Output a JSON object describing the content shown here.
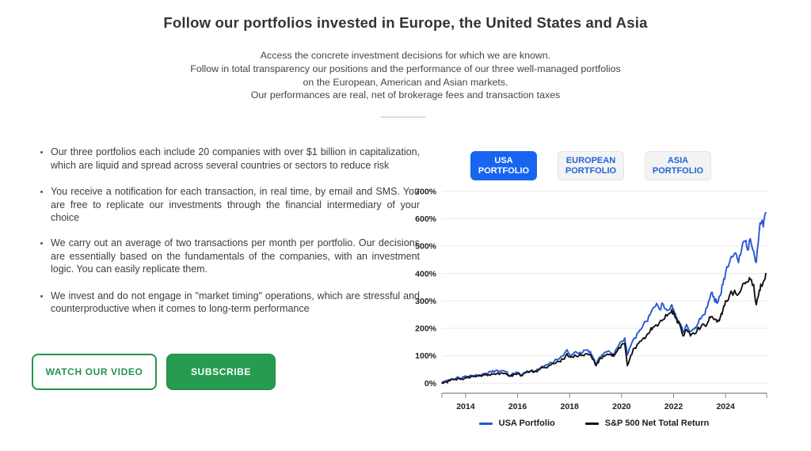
{
  "page": {
    "title": "Follow our portfolios invested in Europe, the United States and Asia",
    "subtitle_lines": [
      "Access the concrete investment decisions for which we are known.",
      "Follow in total transparency our positions and the performance of our three well-managed portfolios",
      "on the European, American and Asian markets.",
      "Our performances are real, net of brokerage fees and transaction taxes"
    ]
  },
  "bullets": [
    "Our three portfolios each include 20 companies with over $1 billion in capitalization, which are liquid and spread across several countries or sectors to reduce risk",
    "You receive a notification for each transaction, in real time, by email and SMS. You are free to replicate our investments through the financial intermediary of your choice",
    "We carry out an average of two transactions per month per portfolio. Our decisions are essentially based on the fundamentals of the companies, with an investment logic. You can easily replicate them.",
    "We invest and do not engage in \"market timing\" operations, which are stressful and counterproductive when it comes to long-term performance"
  ],
  "actions": {
    "watch_video": "WATCH OUR VIDEO",
    "subscribe": "SUBSCRIBE"
  },
  "tabs": [
    {
      "label": "USA\nPORTFOLIO",
      "active": true
    },
    {
      "label": "EUROPEAN\nPORTFOLIO",
      "active": false
    },
    {
      "label": "ASIA\nPORTFOLIO",
      "active": false
    }
  ],
  "colors": {
    "tab_active_bg": "#1765f0",
    "tab_inactive_text": "#2265cf",
    "button_green": "#279b50",
    "usa_line": "#2b57d0",
    "sp500_line": "#141414",
    "gridline": "#eaeaea",
    "axis": "#666666"
  },
  "chart_data": {
    "type": "line",
    "title": "",
    "xlabel": "",
    "ylabel": "",
    "grid": true,
    "legend_position": "bottom",
    "xlim": [
      2013.09,
      2025.58
    ],
    "ylim": [
      0,
      700
    ],
    "x_ticks": [
      2014,
      2016,
      2018,
      2020,
      2022,
      2024
    ],
    "y_ticks": [
      "0%",
      "100%",
      "200%",
      "300%",
      "400%",
      "500%",
      "600%",
      "700%"
    ],
    "series": [
      {
        "name": "USA Portfolio",
        "color": "#2b57d0",
        "points": [
          [
            2013.1,
            2
          ],
          [
            2013.2,
            7
          ],
          [
            2013.35,
            12
          ],
          [
            2013.5,
            15
          ],
          [
            2013.65,
            20
          ],
          [
            2013.8,
            18
          ],
          [
            2013.95,
            24
          ],
          [
            2014.1,
            22
          ],
          [
            2014.25,
            28
          ],
          [
            2014.4,
            31
          ],
          [
            2014.55,
            27
          ],
          [
            2014.7,
            33
          ],
          [
            2014.85,
            36
          ],
          [
            2015.0,
            40
          ],
          [
            2015.15,
            45
          ],
          [
            2015.3,
            42
          ],
          [
            2015.45,
            46
          ],
          [
            2015.6,
            40
          ],
          [
            2015.72,
            27
          ],
          [
            2015.85,
            36
          ],
          [
            2016.0,
            38
          ],
          [
            2016.12,
            26
          ],
          [
            2016.3,
            38
          ],
          [
            2016.5,
            44
          ],
          [
            2016.65,
            41
          ],
          [
            2016.8,
            50
          ],
          [
            2017.0,
            60
          ],
          [
            2017.2,
            70
          ],
          [
            2017.4,
            78
          ],
          [
            2017.6,
            89
          ],
          [
            2017.75,
            100
          ],
          [
            2017.9,
            122
          ],
          [
            2018.05,
            98
          ],
          [
            2018.2,
            114
          ],
          [
            2018.35,
            108
          ],
          [
            2018.5,
            112
          ],
          [
            2018.65,
            120
          ],
          [
            2018.8,
            116
          ],
          [
            2018.92,
            90
          ],
          [
            2019.02,
            66
          ],
          [
            2019.15,
            95
          ],
          [
            2019.3,
            107
          ],
          [
            2019.45,
            115
          ],
          [
            2019.6,
            110
          ],
          [
            2019.7,
            102
          ],
          [
            2019.85,
            130
          ],
          [
            2020.0,
            152
          ],
          [
            2020.12,
            165
          ],
          [
            2020.22,
            103
          ],
          [
            2020.35,
            135
          ],
          [
            2020.5,
            165
          ],
          [
            2020.65,
            185
          ],
          [
            2020.8,
            205
          ],
          [
            2020.95,
            225
          ],
          [
            2021.1,
            250
          ],
          [
            2021.2,
            272
          ],
          [
            2021.35,
            291
          ],
          [
            2021.45,
            270
          ],
          [
            2021.6,
            288
          ],
          [
            2021.75,
            265
          ],
          [
            2021.9,
            282
          ],
          [
            2022.0,
            270
          ],
          [
            2022.1,
            242
          ],
          [
            2022.25,
            218
          ],
          [
            2022.37,
            185
          ],
          [
            2022.5,
            214
          ],
          [
            2022.65,
            190
          ],
          [
            2022.8,
            198
          ],
          [
            2022.9,
            210
          ],
          [
            2023.05,
            235
          ],
          [
            2023.2,
            250
          ],
          [
            2023.35,
            300
          ],
          [
            2023.45,
            330
          ],
          [
            2023.55,
            315
          ],
          [
            2023.67,
            291
          ],
          [
            2023.8,
            320
          ],
          [
            2023.9,
            360
          ],
          [
            2024.0,
            402
          ],
          [
            2024.15,
            440
          ],
          [
            2024.35,
            474
          ],
          [
            2024.5,
            440
          ],
          [
            2024.62,
            490
          ],
          [
            2024.75,
            517
          ],
          [
            2024.85,
            485
          ],
          [
            2024.95,
            527
          ],
          [
            2025.08,
            480
          ],
          [
            2025.18,
            440
          ],
          [
            2025.3,
            560
          ],
          [
            2025.38,
            585
          ],
          [
            2025.45,
            570
          ],
          [
            2025.55,
            622
          ]
        ]
      },
      {
        "name": "S&P 500 Net Total Return",
        "color": "#141414",
        "points": [
          [
            2013.1,
            0
          ],
          [
            2013.25,
            5
          ],
          [
            2013.4,
            9
          ],
          [
            2013.55,
            13
          ],
          [
            2013.7,
            17
          ],
          [
            2013.85,
            15
          ],
          [
            2014.0,
            20
          ],
          [
            2014.15,
            19
          ],
          [
            2014.3,
            24
          ],
          [
            2014.45,
            27
          ],
          [
            2014.6,
            25
          ],
          [
            2014.75,
            30
          ],
          [
            2014.9,
            32
          ],
          [
            2015.05,
            33
          ],
          [
            2015.2,
            35
          ],
          [
            2015.35,
            37
          ],
          [
            2015.5,
            36
          ],
          [
            2015.72,
            25
          ],
          [
            2015.85,
            33
          ],
          [
            2016.0,
            35
          ],
          [
            2016.12,
            27
          ],
          [
            2016.3,
            39
          ],
          [
            2016.5,
            43
          ],
          [
            2016.65,
            44
          ],
          [
            2016.8,
            48
          ],
          [
            2017.0,
            57
          ],
          [
            2017.2,
            64
          ],
          [
            2017.4,
            71
          ],
          [
            2017.6,
            79
          ],
          [
            2017.75,
            88
          ],
          [
            2017.9,
            108
          ],
          [
            2018.05,
            95
          ],
          [
            2018.2,
            103
          ],
          [
            2018.35,
            99
          ],
          [
            2018.5,
            102
          ],
          [
            2018.65,
            108
          ],
          [
            2018.8,
            105
          ],
          [
            2018.92,
            85
          ],
          [
            2019.02,
            64
          ],
          [
            2019.15,
            88
          ],
          [
            2019.3,
            100
          ],
          [
            2019.45,
            106
          ],
          [
            2019.6,
            104
          ],
          [
            2019.7,
            98
          ],
          [
            2019.85,
            120
          ],
          [
            2020.0,
            140
          ],
          [
            2020.12,
            146
          ],
          [
            2020.22,
            64
          ],
          [
            2020.35,
            100
          ],
          [
            2020.5,
            128
          ],
          [
            2020.65,
            145
          ],
          [
            2020.8,
            160
          ],
          [
            2020.95,
            172
          ],
          [
            2021.1,
            190
          ],
          [
            2021.2,
            203
          ],
          [
            2021.35,
            212
          ],
          [
            2021.45,
            220
          ],
          [
            2021.6,
            232
          ],
          [
            2021.75,
            245
          ],
          [
            2021.9,
            258
          ],
          [
            2022.0,
            262
          ],
          [
            2022.1,
            238
          ],
          [
            2022.25,
            210
          ],
          [
            2022.37,
            172
          ],
          [
            2022.5,
            196
          ],
          [
            2022.65,
            172
          ],
          [
            2022.8,
            180
          ],
          [
            2022.9,
            192
          ],
          [
            2023.05,
            204
          ],
          [
            2023.2,
            210
          ],
          [
            2023.35,
            228
          ],
          [
            2023.45,
            243
          ],
          [
            2023.55,
            232
          ],
          [
            2023.67,
            223
          ],
          [
            2023.8,
            242
          ],
          [
            2023.9,
            268
          ],
          [
            2024.0,
            301
          ],
          [
            2024.15,
            320
          ],
          [
            2024.35,
            339
          ],
          [
            2024.5,
            325
          ],
          [
            2024.62,
            348
          ],
          [
            2024.75,
            363
          ],
          [
            2024.85,
            370
          ],
          [
            2024.95,
            378
          ],
          [
            2025.08,
            360
          ],
          [
            2025.18,
            286
          ],
          [
            2025.3,
            340
          ],
          [
            2025.38,
            354
          ],
          [
            2025.45,
            370
          ],
          [
            2025.55,
            400
          ]
        ]
      }
    ]
  }
}
